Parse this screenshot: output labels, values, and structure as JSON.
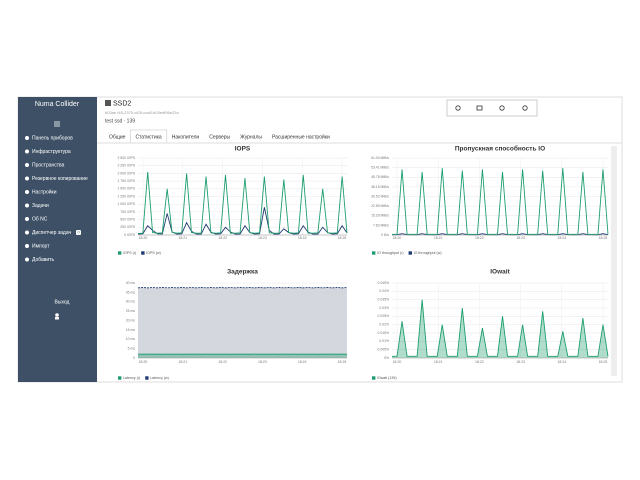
{
  "sidebar": {
    "brand": "Numa Collider",
    "menu": [
      "Панель приборов",
      "Инфраструктура",
      "Пространства",
      "Резервное копирование",
      "Настройки",
      "Задачи",
      "Об NC",
      "Диспетчер задач",
      "Импорт",
      "Добавить"
    ],
    "badge": "0",
    "logout": "Выход"
  },
  "header": {
    "title": "SSD2",
    "uuid": "603ae f45-2375-c63f-cca5-b03edf06e22a",
    "subtitle": "test ssd · 139"
  },
  "tabs": [
    "Общие",
    "Статистика",
    "Накопители",
    "Серверы",
    "Журналы",
    "Расширенные настройки"
  ],
  "active_tab": 1,
  "charts": [
    {
      "title": "IOPS",
      "ylim": [
        0,
        2500
      ],
      "yticks": [
        {
          "value": 0,
          "label": "0 IOPS"
        },
        {
          "value": 250,
          "label": "250 IOPS"
        },
        {
          "value": 500,
          "label": "500 IOPS"
        },
        {
          "value": 750,
          "label": "750 IOPS"
        },
        {
          "value": 1000,
          "label": "1 000 IOPS"
        },
        {
          "value": 1250,
          "label": "1 250 IOPS"
        },
        {
          "value": 1500,
          "label": "1 500 IOPS"
        },
        {
          "value": 1750,
          "label": "1 750 IOPS"
        },
        {
          "value": 2000,
          "label": "2 000 IOPS"
        },
        {
          "value": 2250,
          "label": "2 250 IOPS"
        },
        {
          "value": 2500,
          "label": "2 500 IOPS"
        }
      ],
      "xtick_labels": [
        "18:20",
        "18:21",
        "18:22",
        "18:23",
        "18:24",
        "18:25"
      ],
      "series": [
        {
          "name": "IOPS (r)",
          "color": "#1e9e6e",
          "area": false,
          "values": [
            50,
            60,
            2050,
            80,
            60,
            70,
            1500,
            90,
            60,
            70,
            2000,
            80,
            60,
            60,
            1900,
            70,
            60,
            70,
            1950,
            60,
            60,
            70,
            1850,
            80,
            60,
            70,
            1900,
            70,
            60,
            60,
            1800,
            80,
            60,
            70,
            1950,
            60,
            60,
            70,
            1500,
            70,
            60,
            70,
            1900,
            60
          ]
        },
        {
          "name": "IOPS (w)",
          "color": "#1f3b73",
          "area": false,
          "values": [
            30,
            40,
            300,
            150,
            40,
            30,
            700,
            100,
            30,
            40,
            400,
            120,
            30,
            30,
            350,
            90,
            30,
            40,
            250,
            100,
            30,
            30,
            300,
            80,
            30,
            40,
            900,
            150,
            30,
            30,
            200,
            80,
            30,
            40,
            300,
            90,
            30,
            30,
            250,
            80,
            30,
            40,
            300,
            70
          ]
        }
      ]
    },
    {
      "title": "Пропускная способность IO",
      "ylim": [
        0,
        61.04
      ],
      "yticks": [
        {
          "value": 0,
          "label": "0 B/s"
        },
        {
          "value": 7.63,
          "label": "7.63 MiB/s"
        },
        {
          "value": 15.26,
          "label": "15.26 MiB/s"
        },
        {
          "value": 22.89,
          "label": "22.89 MiB/s"
        },
        {
          "value": 30.52,
          "label": "30.52 MiB/s"
        },
        {
          "value": 38.15,
          "label": "38.15 MiB/s"
        },
        {
          "value": 45.78,
          "label": "45.78 MiB/s"
        },
        {
          "value": 53.41,
          "label": "53.41 MiB/s"
        },
        {
          "value": 61.04,
          "label": "61.04 MiB/s"
        }
      ],
      "xtick_labels": [
        "18:20",
        "18:21",
        "18:22",
        "18:23",
        "18:24",
        "18:25"
      ],
      "series": [
        {
          "name": "IO throughput (r)",
          "color": "#1e9e6e",
          "area": false,
          "values": [
            0.5,
            0.5,
            52,
            0.5,
            0.5,
            0.5,
            50,
            0.5,
            0.5,
            0.5,
            53,
            0.5,
            0.5,
            0.5,
            51,
            0.5,
            0.5,
            0.5,
            52,
            0.5,
            0.5,
            0.5,
            50,
            0.5,
            0.5,
            0.5,
            52,
            0.5,
            0.5,
            0.5,
            51,
            0.5,
            0.5,
            0.5,
            53,
            0.5,
            0.5,
            0.5,
            50,
            0.5,
            0.5,
            0.5,
            52,
            0.5
          ]
        },
        {
          "name": "IO throughput (w)",
          "color": "#1f3b73",
          "area": false,
          "values": [
            0.2,
            0.2,
            1,
            0.3,
            0.2,
            0.2,
            1,
            0.3,
            0.2,
            0.2,
            1,
            0.3,
            0.2,
            0.2,
            1,
            0.3,
            0.2,
            0.2,
            1,
            0.3,
            0.2,
            0.2,
            1,
            0.3,
            0.2,
            0.2,
            1,
            0.3,
            0.2,
            0.2,
            1,
            0.3,
            0.2,
            0.2,
            1,
            0.3,
            0.2,
            0.2,
            1,
            0.3,
            0.2,
            0.2,
            1,
            0.3
          ]
        }
      ]
    },
    {
      "title": "Задержка",
      "ylim": [
        0,
        40
      ],
      "yticks": [
        {
          "value": 0,
          "label": "0"
        },
        {
          "value": 5,
          "label": "5 ms"
        },
        {
          "value": 10,
          "label": "10 ms"
        },
        {
          "value": 15,
          "label": "15 ms"
        },
        {
          "value": 20,
          "label": "20 ms"
        },
        {
          "value": 25,
          "label": "25 ms"
        },
        {
          "value": 30,
          "label": "30 ms"
        },
        {
          "value": 35,
          "label": "35 ms"
        },
        {
          "value": 40,
          "label": "40 ms"
        }
      ],
      "xtick_labels": [
        "18:20",
        "18:21",
        "18:22",
        "18:23",
        "18:24",
        "18:25"
      ],
      "series": [
        {
          "name": "Latency (r)",
          "color": "#1e9e6e",
          "area": true,
          "values": [
            2.1,
            2,
            2.1,
            2,
            2.1,
            2,
            2.1,
            2,
            2.1,
            2,
            2.1,
            2,
            2.1,
            2,
            2.1,
            2,
            2.1,
            2,
            2.1,
            2,
            2.1,
            2,
            2.1,
            2,
            2.1,
            2,
            2.1,
            2,
            2.1,
            2,
            2.1,
            2,
            2.1,
            2,
            2.1,
            2,
            2.1,
            2,
            2.1,
            2,
            2.1,
            2,
            2.1,
            2
          ]
        },
        {
          "name": "Latency (w)",
          "color": "#1f3b73",
          "area": true,
          "values": [
            37.4,
            37.6,
            37.4,
            37.6,
            37.4,
            37.6,
            37.4,
            37.6,
            37.4,
            37.6,
            37.4,
            37.6,
            37.4,
            37.6,
            37.4,
            37.6,
            37.4,
            37.6,
            37.4,
            37.6,
            37.4,
            37.6,
            37.4,
            37.6,
            37.4,
            37.6,
            37.4,
            37.6,
            37.4,
            37.6,
            37.4,
            37.6,
            37.4,
            37.6,
            37.4,
            37.6,
            37.4,
            37.6,
            37.4,
            37.6,
            37.4,
            37.6,
            37.4,
            37.6
          ]
        }
      ]
    },
    {
      "title": "IOwait",
      "ylim": [
        0,
        0.045
      ],
      "yticks": [
        {
          "value": 0,
          "label": "0%"
        },
        {
          "value": 0.005,
          "label": "0.005%"
        },
        {
          "value": 0.01,
          "label": "0.01%"
        },
        {
          "value": 0.015,
          "label": "0.015%"
        },
        {
          "value": 0.02,
          "label": "0.02%"
        },
        {
          "value": 0.025,
          "label": "0.025%"
        },
        {
          "value": 0.03,
          "label": "0.03%"
        },
        {
          "value": 0.035,
          "label": "0.035%"
        },
        {
          "value": 0.04,
          "label": "0.04%"
        },
        {
          "value": 0.045,
          "label": "0.045%"
        }
      ],
      "xtick_labels": [
        "18:20",
        "18:21",
        "18:22",
        "18:23",
        "18:24",
        "18:25"
      ],
      "series": [
        {
          "name": "IOwait (139)",
          "color": "#1e9e6e",
          "area": true,
          "values": [
            0.001,
            0.001,
            0.022,
            0.001,
            0.001,
            0.001,
            0.035,
            0.001,
            0.001,
            0.001,
            0.02,
            0.001,
            0.001,
            0.001,
            0.03,
            0.001,
            0.001,
            0.001,
            0.018,
            0.001,
            0.001,
            0.001,
            0.025,
            0.001,
            0.001,
            0.001,
            0.02,
            0.001,
            0.001,
            0.001,
            0.028,
            0.001,
            0.001,
            0.001,
            0.016,
            0.001,
            0.001,
            0.001,
            0.024,
            0.001,
            0.001,
            0.001,
            0.02,
            0.001
          ]
        }
      ]
    }
  ]
}
